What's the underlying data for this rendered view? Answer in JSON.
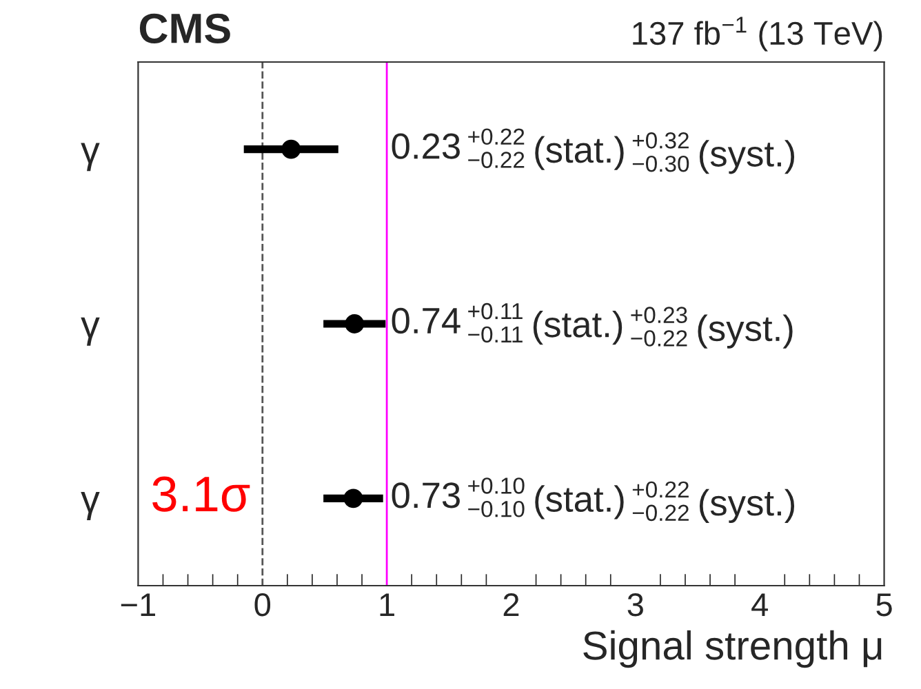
{
  "chart_data": {
    "type": "scatter",
    "orientation": "horizontal",
    "title": "CMS",
    "subtitle": "137 fb$^{−1}$ (13 TeV)",
    "xlabel": "Signal strength μ",
    "categories": [
      "γ",
      "γ",
      "γ"
    ],
    "series": [
      {
        "color": "#000000",
        "values": [
          0.23,
          0.74,
          0.73
        ],
        "errors": [
          0.38,
          0.25,
          0.24
        ],
        "value_labels": [
          "0.23 $^{+0.22}$$_{−0.22}$ (stat.) $^{+0.32}$$_{−0.30}$ (syst.)",
          "0.74 $^{+0.11}$$_{−0.11}$ (stat.) $^{+0.23}$$_{−0.22}$ (syst.)",
          "0.73 $^{+0.10}$$_{−0.10}$ (stat.) $^{+0.22}$$_{−0.22}$ (syst.)"
        ]
      }
    ],
    "marker": "circle",
    "xlim": [
      -1,
      5
    ],
    "xticks": [
      {
        "value": -1,
        "label": "−1"
      },
      0,
      1,
      2,
      3,
      4,
      5
    ],
    "ref_lines": [
      {
        "axis": "x",
        "value": 0,
        "color": "#555555",
        "line_style": "dashed"
      },
      {
        "axis": "x",
        "value": 1,
        "color": "#ff00ff",
        "line_style": "solid"
      }
    ],
    "annotations": [
      "3.1σ"
    ],
    "grid": false,
    "legend": false
  }
}
